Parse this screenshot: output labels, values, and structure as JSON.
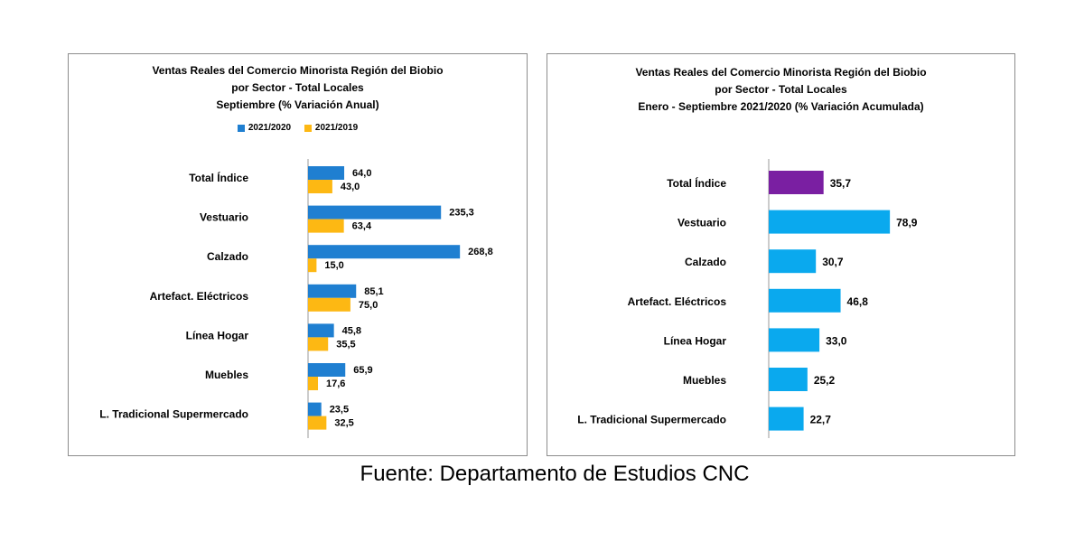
{
  "chart_data": [
    {
      "type": "bar",
      "orientation": "horizontal",
      "title": [
        "Ventas Reales del Comercio Minorista  Región del Biobio",
        "por Sector - Total Locales",
        "Septiembre  (% Variación Anual)"
      ],
      "categories": [
        "Total Índice",
        "Vestuario",
        "Calzado",
        "Artefact. Eléctricos",
        "Línea Hogar",
        "Muebles",
        "L. Tradicional Supermercado"
      ],
      "series": [
        {
          "name": "2021/2020",
          "color": "#1f7fd1",
          "values": [
            64.0,
            235.3,
            268.8,
            85.1,
            45.8,
            65.9,
            23.5
          ],
          "labels": [
            "64,0",
            "235,3",
            "268,8",
            "85,1",
            "45,8",
            "65,9",
            "23,5"
          ]
        },
        {
          "name": "2021/2019",
          "color": "#fdb813",
          "values": [
            43.0,
            63.4,
            15.0,
            75.0,
            35.5,
            17.6,
            32.5
          ],
          "labels": [
            "43,0",
            "63,4",
            "15,0",
            "75,0",
            "35,5",
            "17,6",
            "32,5"
          ]
        }
      ],
      "legend": "top",
      "grid": false
    },
    {
      "type": "bar",
      "orientation": "horizontal",
      "title": [
        "Ventas Reales del Comercio Minorista Región del Biobio",
        "por Sector - Total Locales",
        "Enero - Septiembre 2021/2020  (% Variación Acumulada)"
      ],
      "categories": [
        "Total Índice",
        "Vestuario",
        "Calzado",
        "Artefact. Eléctricos",
        "Línea Hogar",
        "Muebles",
        "L. Tradicional Supermercado"
      ],
      "values": [
        35.7,
        78.9,
        30.7,
        46.8,
        33.0,
        25.2,
        22.7
      ],
      "labels": [
        "35,7",
        "78,9",
        "30,7",
        "46,8",
        "33,0",
        "25,2",
        "22,7"
      ],
      "colors": {
        "highlight": "#7a1fa2",
        "default": "#0aa9ee"
      },
      "highlight_category": "Total Índice",
      "grid": false
    }
  ],
  "source": "Fuente: Departamento de Estudios CNC"
}
